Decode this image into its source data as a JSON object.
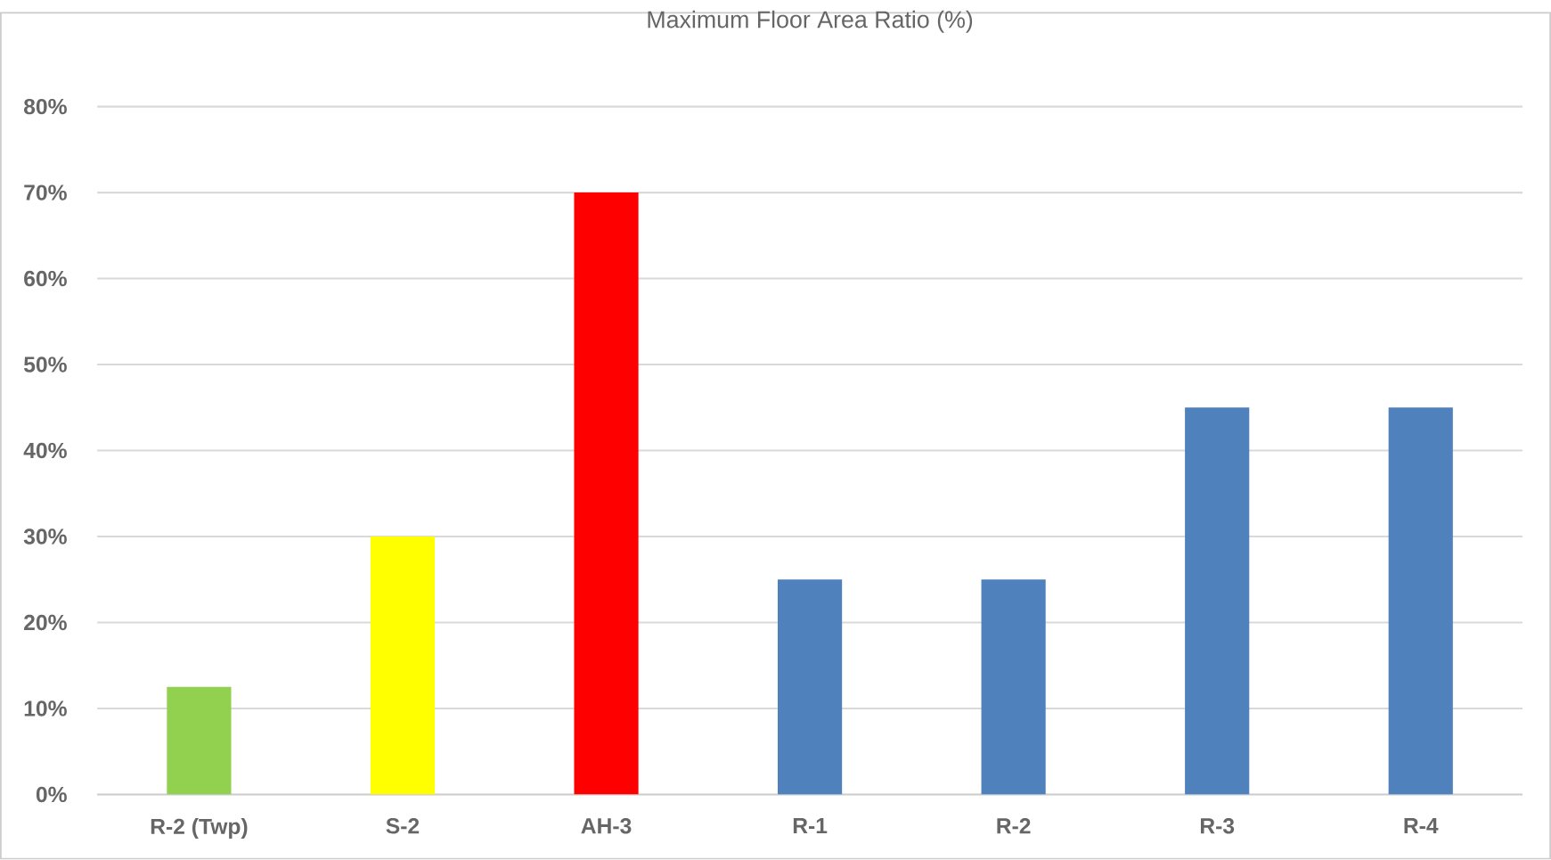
{
  "chart_data": {
    "type": "bar",
    "title": "Maximum Floor Area Ratio  (%)",
    "categories": [
      "R-2 (Twp)",
      "S-2",
      "AH-3",
      "R-1",
      "R-2",
      "R-3",
      "R-4"
    ],
    "values": [
      12.5,
      30,
      70,
      25,
      25,
      45,
      45
    ],
    "colors": [
      "#92d050",
      "#ffff00",
      "#ff0000",
      "#4f81bd",
      "#4f81bd",
      "#4f81bd",
      "#4f81bd"
    ],
    "ylim": [
      0,
      80
    ],
    "yticks": [
      {
        "value": 0,
        "label": "0%"
      },
      {
        "value": 10,
        "label": "10%"
      },
      {
        "value": 20,
        "label": "20%"
      },
      {
        "value": 30,
        "label": "30%"
      },
      {
        "value": 40,
        "label": "40%"
      },
      {
        "value": 50,
        "label": "50%"
      },
      {
        "value": 60,
        "label": "60%"
      },
      {
        "value": 70,
        "label": "70%"
      },
      {
        "value": 80,
        "label": "80%"
      }
    ],
    "grid": "y"
  }
}
